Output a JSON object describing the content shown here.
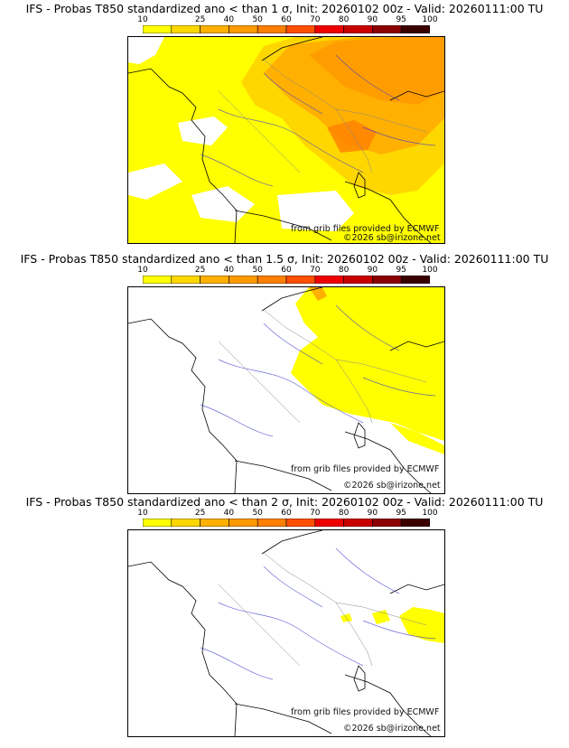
{
  "colorbar": {
    "ticks": [
      "10",
      "25",
      "40",
      "50",
      "60",
      "70",
      "80",
      "90",
      "95",
      "100"
    ],
    "colors": [
      "#ffff00",
      "#ffd700",
      "#ffb000",
      "#ff9a00",
      "#ff7f00",
      "#ff4f00",
      "#ee0000",
      "#c80000",
      "#8b0000",
      "#3a0000"
    ]
  },
  "panels": [
    {
      "title": "IFS - Probas T850  standardized ano < than 1 σ, Init: 20260102 00z - Valid: 20260111:00 TU",
      "credit_data": "from grib files provided by ECMWF",
      "credit_copyright": "©2026 sb@irizone.net",
      "coverage": "extensive"
    },
    {
      "title": "IFS - Probas T850  standardized ano < than 1.5 σ, Init: 20260102 00z - Valid: 20260111:00 TU",
      "credit_data": "from grib files provided by ECMWF",
      "credit_copyright": "©2026 sb@irizone.net",
      "coverage": "east"
    },
    {
      "title": "IFS - Probas T850  standardized ano < than 2 σ, Init: 20260102 00z - Valid: 20260111:00 TU",
      "credit_data": "from grib files provided by ECMWF",
      "credit_copyright": "©2026 sb@irizone.net",
      "coverage": "minimal"
    }
  ]
}
